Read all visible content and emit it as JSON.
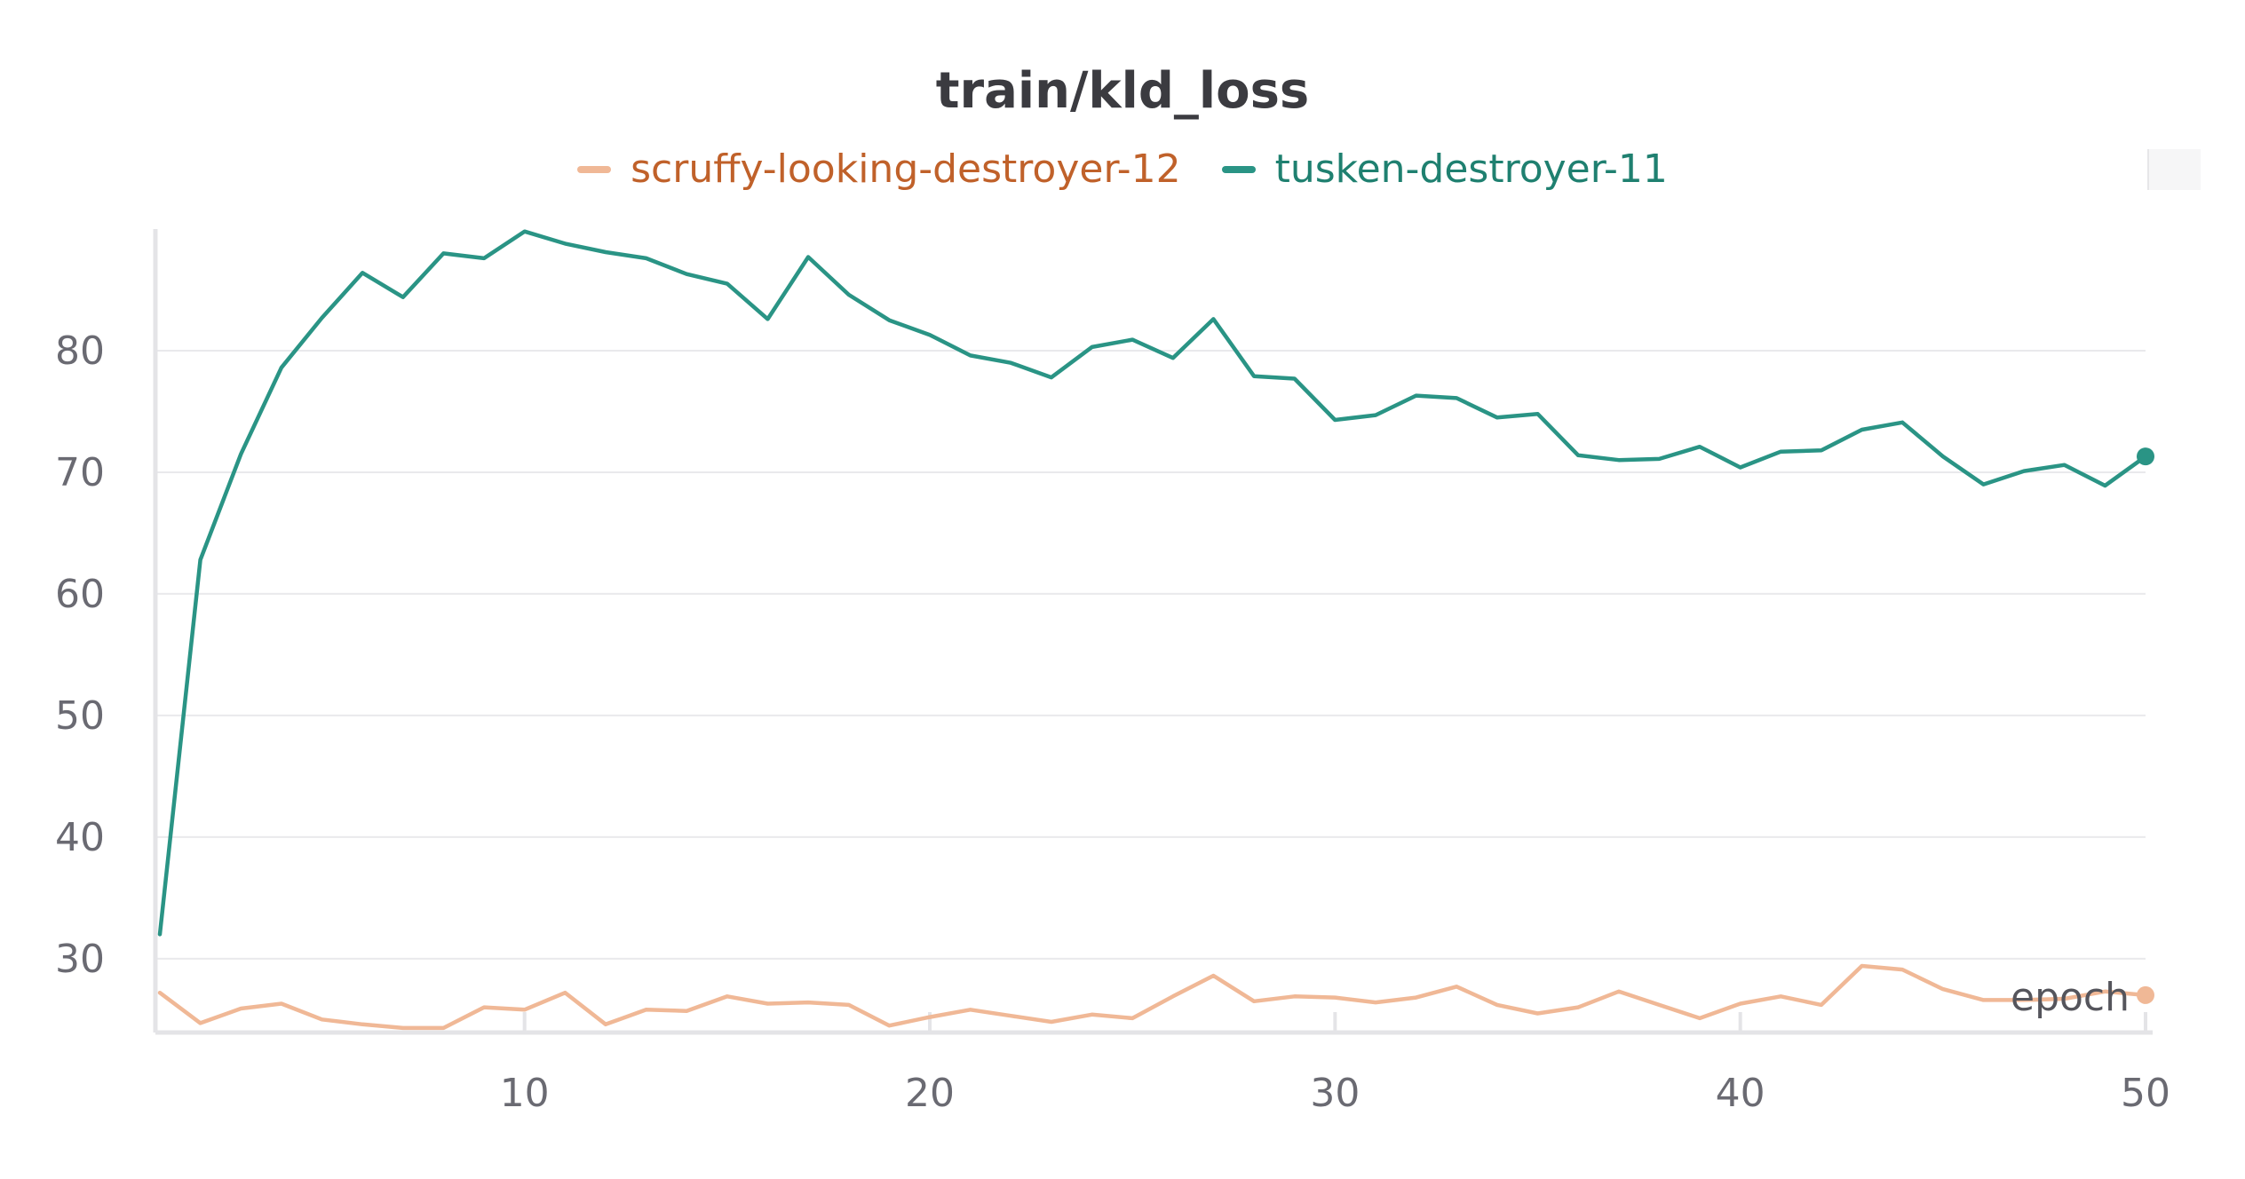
{
  "chart_data": {
    "type": "line",
    "title": "train/kld_loss",
    "xlabel": "epoch",
    "ylabel": "",
    "xlim": [
      1,
      50
    ],
    "ylim": [
      24,
      90
    ],
    "x_ticks": [
      10,
      20,
      30,
      40,
      50
    ],
    "y_ticks": [
      30,
      40,
      50,
      60,
      70,
      80
    ],
    "grid": true,
    "legend_position": "top-center",
    "series": [
      {
        "name": "scruffy-looking-destroyer-12",
        "color": "#f0b896",
        "label_color": "#c0612a",
        "x": [
          1,
          2,
          3,
          4,
          5,
          6,
          7,
          8,
          9,
          10,
          11,
          12,
          13,
          14,
          15,
          16,
          17,
          18,
          19,
          20,
          21,
          22,
          23,
          24,
          25,
          26,
          27,
          28,
          29,
          30,
          31,
          32,
          33,
          34,
          35,
          36,
          37,
          38,
          39,
          40,
          41,
          42,
          43,
          44,
          45,
          46,
          47,
          48,
          49,
          50
        ],
        "y": [
          27.2,
          24.7,
          25.9,
          26.3,
          25.0,
          24.6,
          24.3,
          24.3,
          26.0,
          25.8,
          27.2,
          24.6,
          25.8,
          25.7,
          26.9,
          26.3,
          26.4,
          26.2,
          24.5,
          25.2,
          25.8,
          25.3,
          24.8,
          25.4,
          25.1,
          26.9,
          28.6,
          26.5,
          26.9,
          26.8,
          26.4,
          26.8,
          27.7,
          26.2,
          25.5,
          26.0,
          27.3,
          26.2,
          25.1,
          26.3,
          26.9,
          26.2,
          29.4,
          29.1,
          27.5,
          26.6,
          26.6,
          26.7,
          27.3,
          27.0
        ]
      },
      {
        "name": "tusken-destroyer-11",
        "color": "#2a9485",
        "label_color": "#1f8070",
        "x": [
          1,
          2,
          3,
          4,
          5,
          6,
          7,
          8,
          9,
          10,
          11,
          12,
          13,
          14,
          15,
          16,
          17,
          18,
          19,
          20,
          21,
          22,
          23,
          24,
          25,
          26,
          27,
          28,
          29,
          30,
          31,
          32,
          33,
          34,
          35,
          36,
          37,
          38,
          39,
          40,
          41,
          42,
          43,
          44,
          45,
          46,
          47,
          48,
          49,
          50
        ],
        "y": [
          32.0,
          62.8,
          71.5,
          78.6,
          82.7,
          86.4,
          84.4,
          88.0,
          87.6,
          89.8,
          88.8,
          88.1,
          87.6,
          86.3,
          85.5,
          82.6,
          87.7,
          84.6,
          82.5,
          81.3,
          79.6,
          79.0,
          77.8,
          80.3,
          80.9,
          79.4,
          82.6,
          77.9,
          77.7,
          74.3,
          74.7,
          76.3,
          76.1,
          74.5,
          74.8,
          71.4,
          71.0,
          71.1,
          72.1,
          70.4,
          71.7,
          71.8,
          73.5,
          74.1,
          71.3,
          69.0,
          70.1,
          70.6,
          68.9,
          71.3
        ]
      }
    ]
  }
}
